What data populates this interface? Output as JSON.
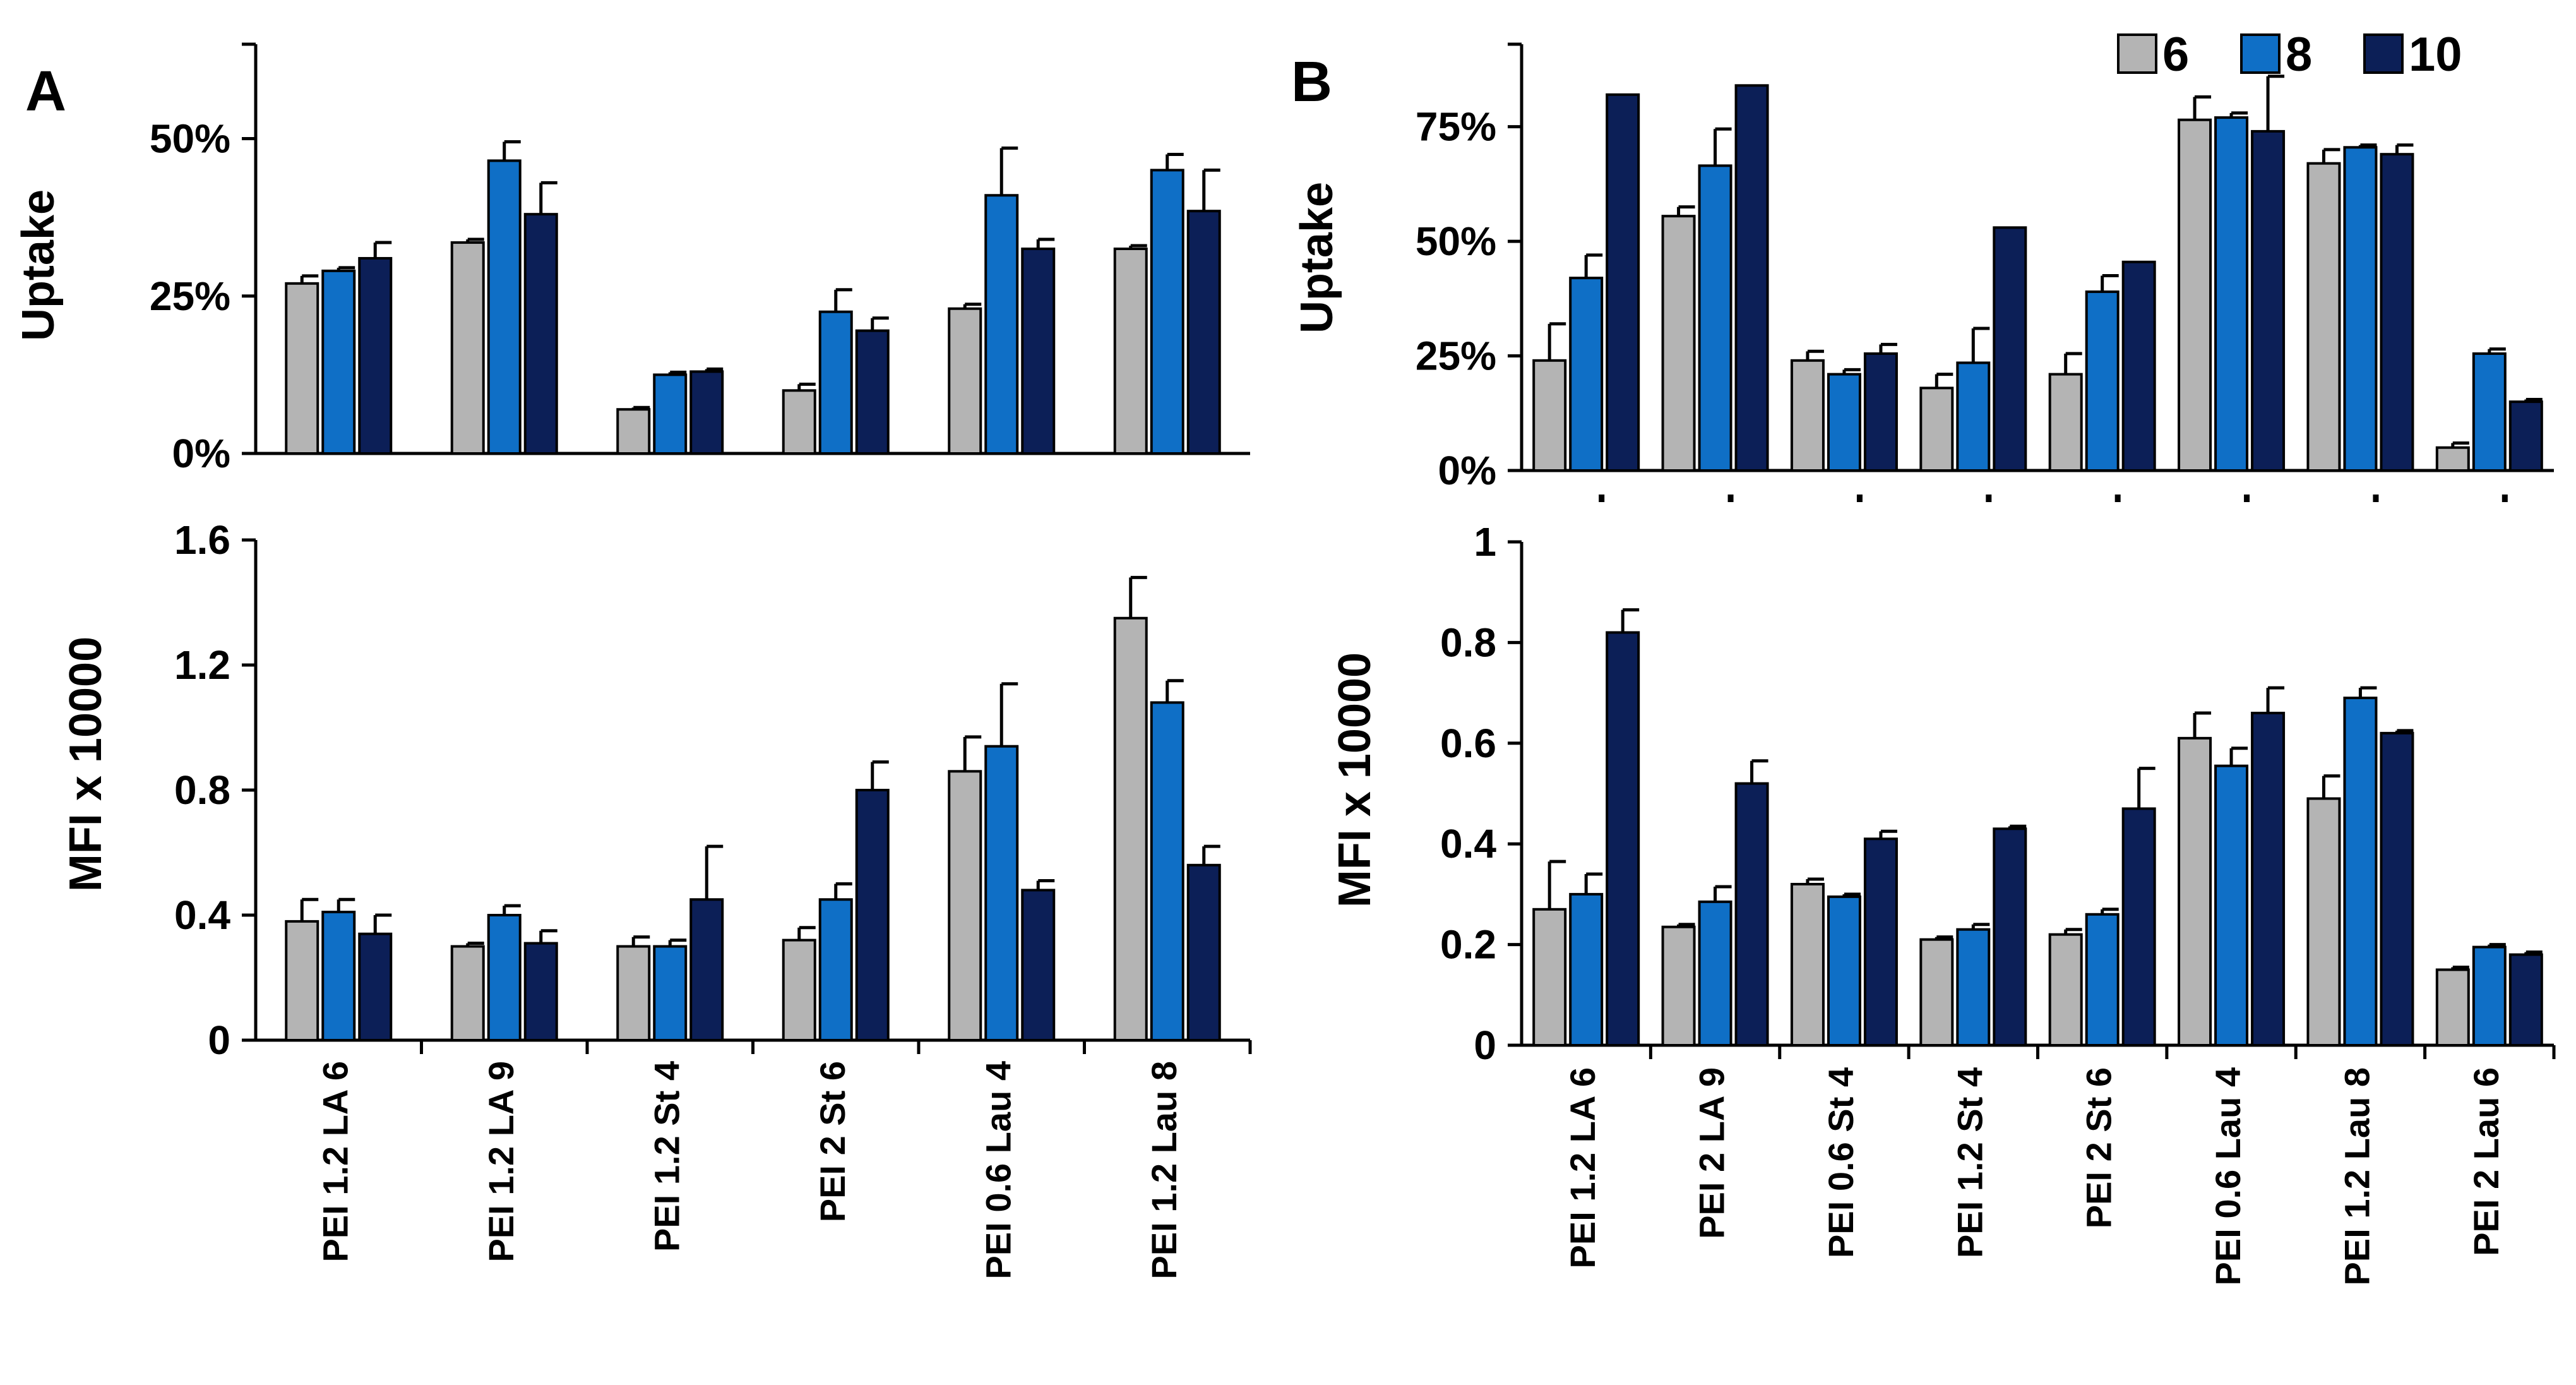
{
  "colors": {
    "s6": "#b4b4b4",
    "s8": "#0f6fc6",
    "s10": "#0c1f57",
    "stroke": "#000000"
  },
  "legend": [
    {
      "label": "6",
      "color": "#b4b4b4"
    },
    {
      "label": "8",
      "color": "#0f6fc6"
    },
    {
      "label": "10",
      "color": "#0c1f57"
    }
  ],
  "chart_data": [
    {
      "type": "bar",
      "panel": "A",
      "ylabel": "Uptake",
      "ylim": [
        0,
        0.65
      ],
      "ticks": [
        0,
        0.25,
        0.5
      ],
      "tick_labels": [
        "0%",
        "25%",
        "50%"
      ],
      "categories": [
        "PEI 1.2 LA 6",
        "PEI 1.2 LA 9",
        "PEI 1.2 St 4",
        "PEI 2 St 6",
        "PEI 0.6 Lau 4",
        "PEI 1.2 Lau 8"
      ],
      "series": [
        {
          "name": "6",
          "values": [
            0.27,
            0.335,
            0.07,
            0.1,
            0.23,
            0.325
          ],
          "errors": [
            0.012,
            0.005,
            0.003,
            0.01,
            0.007,
            0.005
          ]
        },
        {
          "name": "8",
          "values": [
            0.29,
            0.465,
            0.125,
            0.225,
            0.41,
            0.45
          ],
          "errors": [
            0.005,
            0.03,
            0.004,
            0.035,
            0.075,
            0.025
          ]
        },
        {
          "name": "10",
          "values": [
            0.31,
            0.38,
            0.13,
            0.195,
            0.325,
            0.385
          ],
          "errors": [
            0.025,
            0.05,
            0.004,
            0.02,
            0.015,
            0.065
          ]
        }
      ]
    },
    {
      "type": "bar",
      "panel": "B",
      "ylabel": "Uptake",
      "ylim": [
        0,
        0.93
      ],
      "ticks": [
        0,
        0.25,
        0.5,
        0.75
      ],
      "tick_labels": [
        "0%",
        "25%",
        "50%",
        "75%"
      ],
      "categories": [
        "PEI 1.2 LA 6",
        "PEI 2 LA 9",
        "PEI 0.6 St 4",
        "PEI 1.2 St 4",
        "PEI 2 St 6",
        "PEI 0.6 Lau 4",
        "PEI 1.2 Lau 8",
        "PEI 2 Lau 6"
      ],
      "series": [
        {
          "name": "6",
          "values": [
            0.24,
            0.555,
            0.24,
            0.18,
            0.21,
            0.765,
            0.67,
            0.05
          ],
          "errors": [
            0.08,
            0.02,
            0.02,
            0.03,
            0.045,
            0.05,
            0.03,
            0.01
          ]
        },
        {
          "name": "8",
          "values": [
            0.42,
            0.665,
            0.21,
            0.235,
            0.39,
            0.77,
            0.705,
            0.255
          ],
          "errors": [
            0.05,
            0.08,
            0.01,
            0.075,
            0.035,
            0.01,
            0.005,
            0.01
          ]
        },
        {
          "name": "10",
          "values": [
            0.82,
            0.84,
            0.255,
            0.53,
            0.455,
            0.74,
            0.69,
            0.15
          ],
          "errors": [
            0,
            0,
            0.02,
            0,
            0,
            0.12,
            0.02,
            0.005
          ]
        }
      ]
    },
    {
      "type": "bar",
      "panel": "A",
      "ylabel": "MFI x 10000",
      "ylim": [
        0,
        1.6
      ],
      "ticks": [
        0,
        0.4,
        0.8,
        1.2,
        1.6
      ],
      "tick_labels": [
        "0",
        "0.4",
        "0.8",
        "1.2",
        "1.6"
      ],
      "categories": [
        "PEI 1.2 LA 6",
        "PEI 1.2 LA 9",
        "PEI 1.2 St 4",
        "PEI 2 St 6",
        "PEI 0.6 Lau 4",
        "PEI 1.2 Lau 8"
      ],
      "series": [
        {
          "name": "6",
          "values": [
            0.38,
            0.3,
            0.3,
            0.32,
            0.86,
            1.35
          ],
          "errors": [
            0.07,
            0.01,
            0.03,
            0.04,
            0.11,
            0.13
          ]
        },
        {
          "name": "8",
          "values": [
            0.41,
            0.4,
            0.3,
            0.45,
            0.94,
            1.08
          ],
          "errors": [
            0.04,
            0.03,
            0.02,
            0.05,
            0.2,
            0.07
          ]
        },
        {
          "name": "10",
          "values": [
            0.34,
            0.31,
            0.45,
            0.8,
            0.48,
            0.56
          ],
          "errors": [
            0.06,
            0.04,
            0.17,
            0.09,
            0.03,
            0.06
          ]
        }
      ]
    },
    {
      "type": "bar",
      "panel": "B",
      "ylabel": "MFI x 10000",
      "ylim": [
        0,
        1.0
      ],
      "ticks": [
        0,
        0.2,
        0.4,
        0.6,
        0.8,
        1.0
      ],
      "tick_labels": [
        "0",
        "0.2",
        "0.4",
        "0.6",
        "0.8",
        "1"
      ],
      "categories": [
        "PEI 1.2 LA 6",
        "PEI 2 LA 9",
        "PEI 0.6 St 4",
        "PEI 1.2 St 4",
        "PEI 2 St 6",
        "PEI 0.6 Lau 4",
        "PEI 1.2 Lau 8",
        "PEI 2 Lau 6"
      ],
      "series": [
        {
          "name": "6",
          "values": [
            0.27,
            0.235,
            0.32,
            0.21,
            0.22,
            0.61,
            0.49,
            0.15
          ],
          "errors": [
            0.095,
            0.005,
            0.01,
            0.005,
            0.01,
            0.05,
            0.045,
            0.005
          ]
        },
        {
          "name": "8",
          "values": [
            0.3,
            0.285,
            0.295,
            0.23,
            0.26,
            0.555,
            0.69,
            0.195
          ],
          "errors": [
            0.04,
            0.03,
            0.005,
            0.01,
            0.01,
            0.035,
            0.02,
            0.005
          ]
        },
        {
          "name": "10",
          "values": [
            0.82,
            0.52,
            0.41,
            0.43,
            0.47,
            0.66,
            0.62,
            0.18
          ],
          "errors": [
            0.045,
            0.045,
            0.015,
            0.005,
            0.08,
            0.05,
            0.005,
            0.005
          ]
        }
      ]
    }
  ]
}
